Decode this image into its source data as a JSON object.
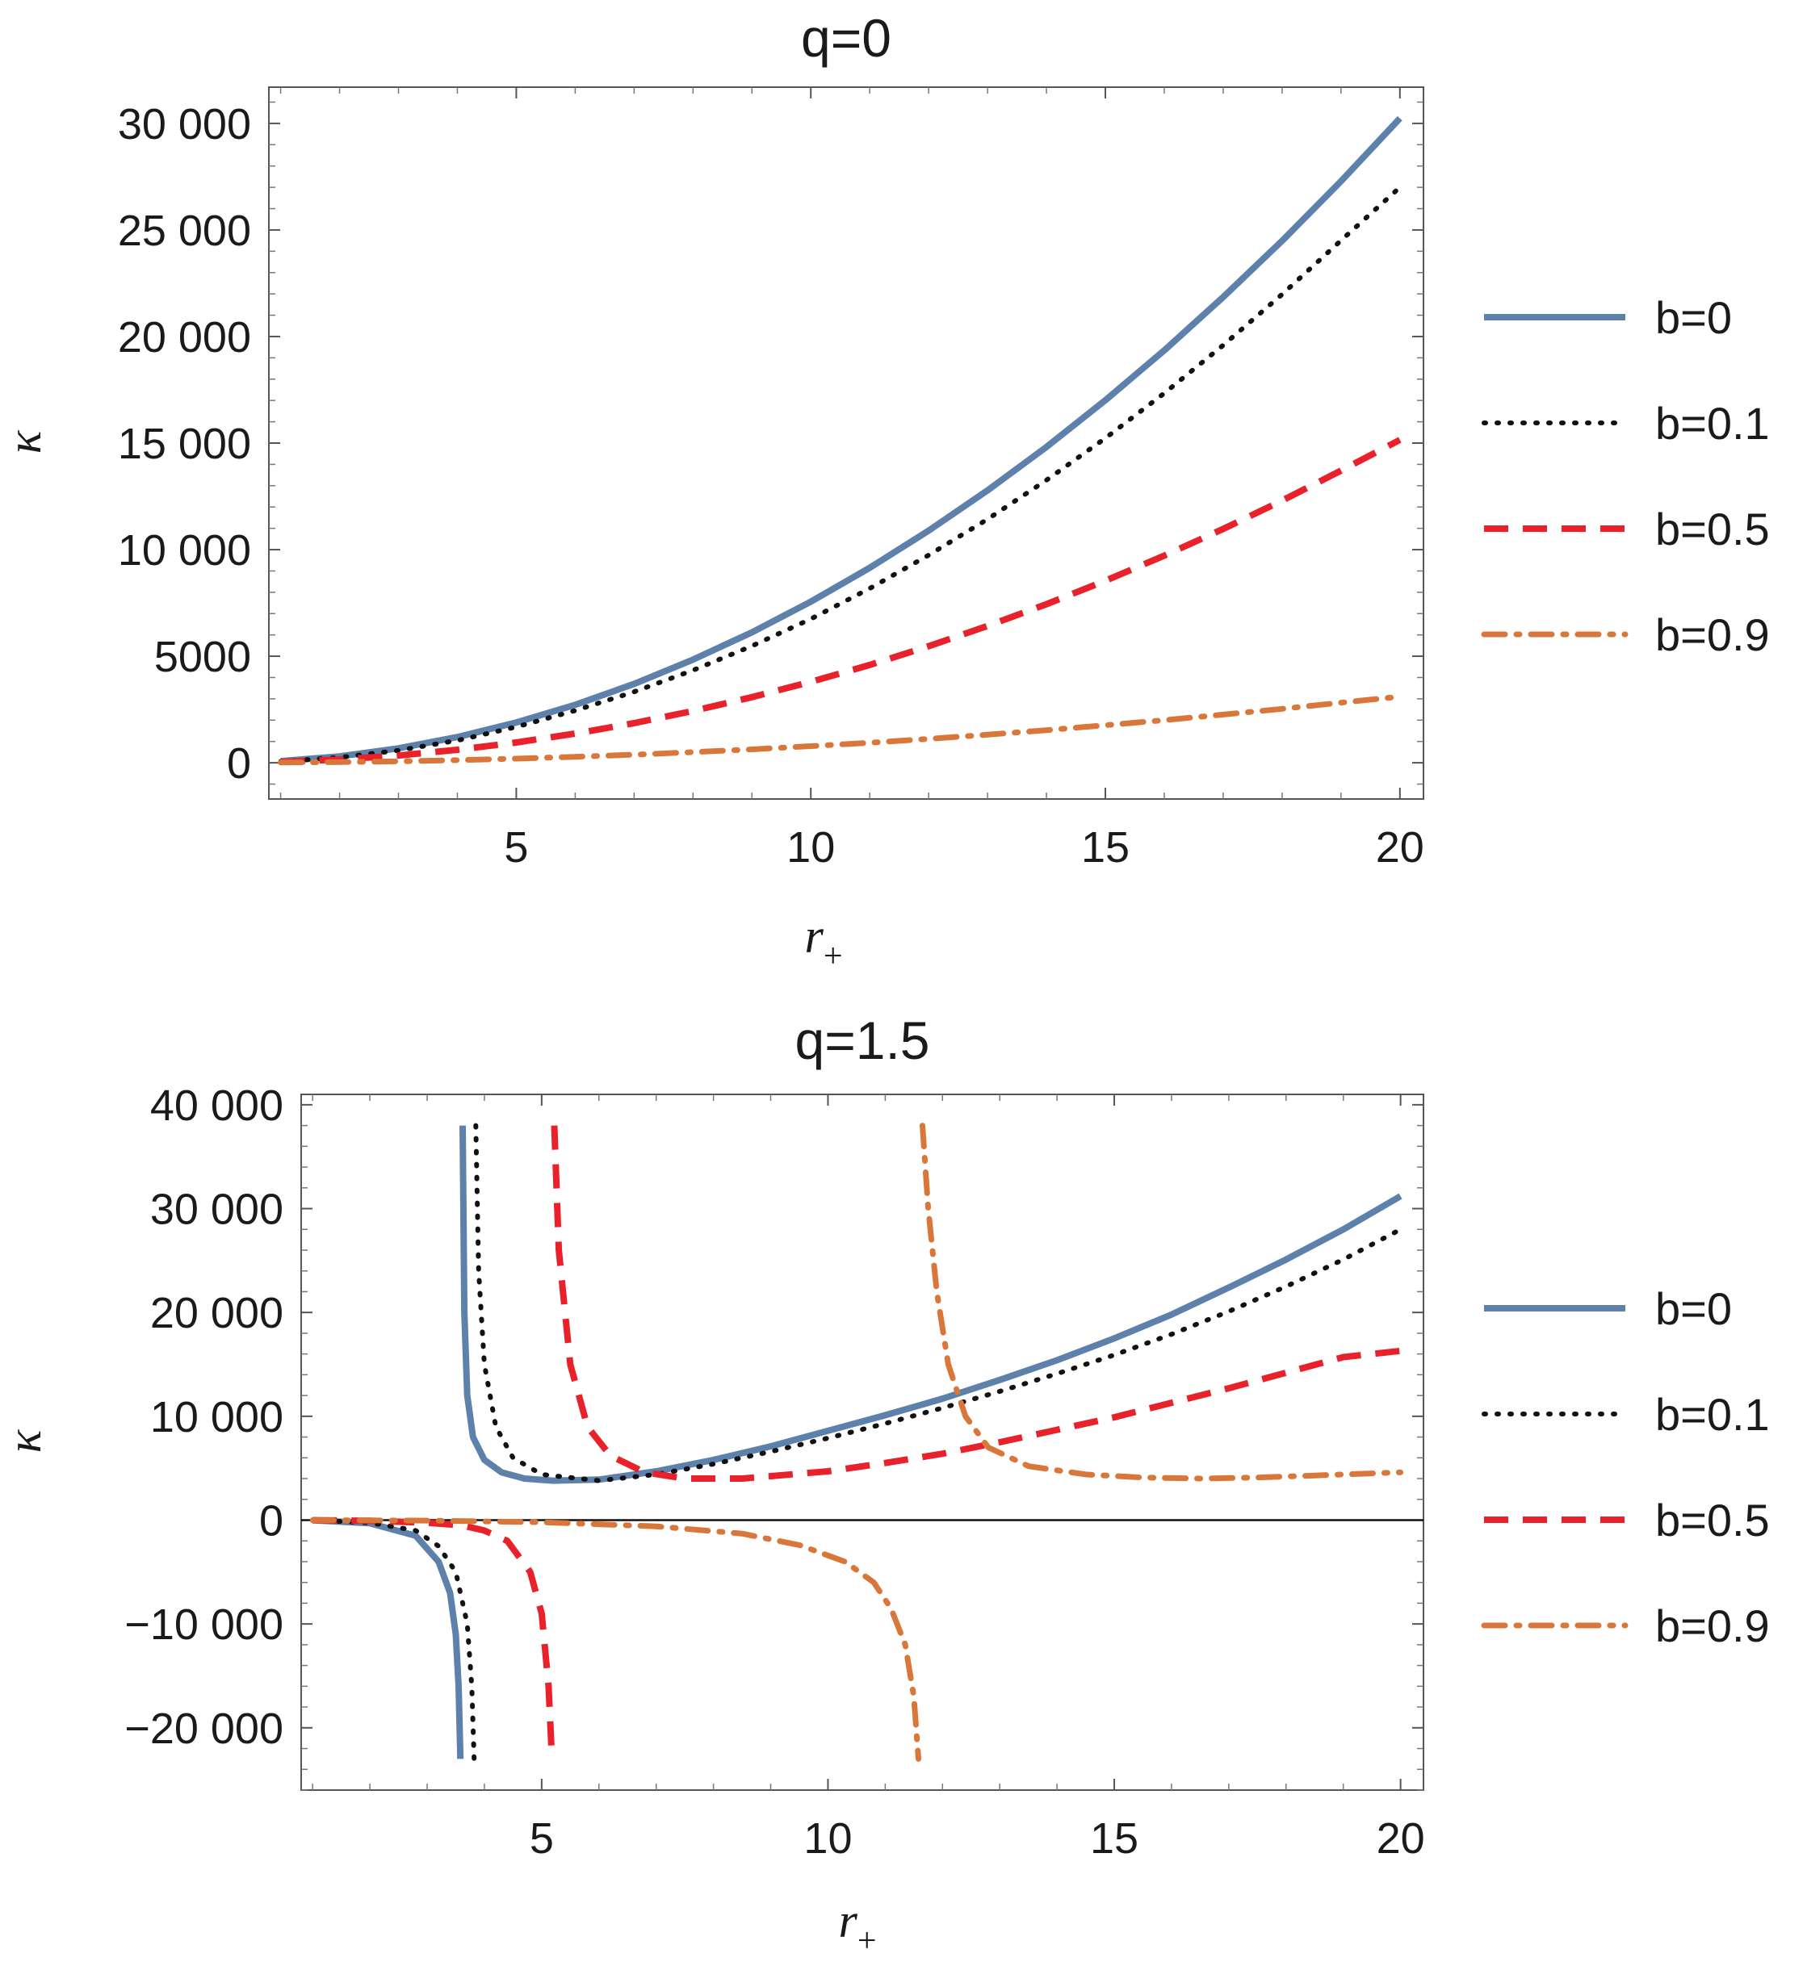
{
  "chart_data": [
    {
      "type": "line",
      "title": "q=0",
      "xlabel": "r",
      "xlabel_subscript": "+",
      "ylabel": "κ",
      "xlim": [
        0.8,
        20.4
      ],
      "ylim": [
        -1700,
        31700
      ],
      "xticks": [
        5,
        10,
        15,
        20
      ],
      "xtick_labels": [
        "5",
        "10",
        "15",
        "20"
      ],
      "yticks": [
        0,
        5000,
        10000,
        15000,
        20000,
        25000,
        30000
      ],
      "ytick_labels": [
        "0",
        "5000",
        "10 000",
        "15 000",
        "20 000",
        "25 000",
        "30 000"
      ],
      "grid": false,
      "zero_line": false,
      "legend_position": "right",
      "series": [
        {
          "name": "b=0",
          "color": "#5e81ac",
          "style": "solid",
          "x": [
            1,
            2,
            3,
            4,
            5,
            6,
            7,
            8,
            9,
            10,
            11,
            12,
            13,
            14,
            15,
            16,
            17,
            18,
            19,
            20
          ],
          "y": [
            75,
            300,
            680,
            1210,
            1890,
            2720,
            3700,
            4840,
            6120,
            7560,
            9150,
            10890,
            12780,
            14820,
            17010,
            19350,
            21850,
            24490,
            27290,
            30240
          ]
        },
        {
          "name": "b=0.1",
          "color": "#111111",
          "style": "dotted",
          "x": [
            1,
            2,
            3,
            4,
            5,
            6,
            7,
            8,
            9,
            10,
            11,
            12,
            13,
            14,
            15,
            16,
            17,
            18,
            19,
            20
          ],
          "y": [
            60,
            250,
            580,
            1050,
            1680,
            2450,
            3330,
            4340,
            5480,
            6750,
            8180,
            9740,
            11430,
            13260,
            15230,
            17340,
            19590,
            21980,
            24510,
            27000
          ]
        },
        {
          "name": "b=0.5",
          "color": "#e8212a",
          "style": "dashed",
          "x": [
            1,
            2,
            3,
            4,
            5,
            6,
            7,
            8,
            9,
            10,
            11,
            12,
            13,
            14,
            15,
            16,
            17,
            18,
            19,
            20
          ],
          "y": [
            40,
            150,
            340,
            610,
            950,
            1370,
            1860,
            2430,
            3080,
            3800,
            4590,
            5470,
            6420,
            7440,
            8540,
            9720,
            10970,
            12300,
            13710,
            15150
          ]
        },
        {
          "name": "b=0.9",
          "color": "#d9773b",
          "color2": "#e8769b",
          "style": "dashdot",
          "x": [
            1,
            2,
            3,
            4,
            5,
            6,
            7,
            8,
            9,
            10,
            11,
            12,
            13,
            14,
            15,
            16,
            17,
            18,
            19,
            20
          ],
          "y": [
            10,
            30,
            70,
            125,
            195,
            280,
            380,
            500,
            630,
            780,
            940,
            1120,
            1320,
            1530,
            1760,
            2000,
            2260,
            2530,
            2820,
            3100
          ]
        }
      ]
    },
    {
      "type": "line",
      "title": "q=1.5",
      "xlabel": "r",
      "xlabel_subscript": "+",
      "ylabel": "κ",
      "xlim": [
        0.8,
        20.4
      ],
      "ylim": [
        -26000,
        41000
      ],
      "xticks": [
        5,
        10,
        15,
        20
      ],
      "xtick_labels": [
        "5",
        "10",
        "15",
        "20"
      ],
      "yticks": [
        -20000,
        -10000,
        0,
        10000,
        20000,
        30000,
        40000
      ],
      "ytick_labels": [
        "−20 000",
        "−10 000",
        "0",
        "10 000",
        "20 000",
        "30 000",
        "40 000"
      ],
      "grid": false,
      "zero_line": true,
      "legend_position": "right",
      "series": [
        {
          "name": "b=0",
          "color": "#5e81ac",
          "style": "solid",
          "x": [
            1.0,
            2.0,
            2.8,
            3.2,
            3.4,
            3.5,
            3.55,
            3.58,
            null,
            3.62,
            3.65,
            3.7,
            3.8,
            4.0,
            4.3,
            4.7,
            5.2,
            6.0,
            7.0,
            8.0,
            9.0,
            10.0,
            11.0,
            12.0,
            13.0,
            14.0,
            15.0,
            16.0,
            17.0,
            18.0,
            19.0,
            20.0
          ],
          "y": [
            -10,
            -300,
            -1500,
            -4000,
            -7000,
            -11000,
            -16000,
            -23000,
            null,
            38000,
            20000,
            12000,
            8000,
            5800,
            4600,
            4000,
            3800,
            3900,
            4700,
            5800,
            7100,
            8600,
            10100,
            11700,
            13500,
            15400,
            17500,
            19800,
            22400,
            25100,
            28000,
            31200
          ]
        },
        {
          "name": "b=0.1",
          "color": "#111111",
          "style": "dotted",
          "x": [
            1.0,
            2.0,
            2.8,
            3.2,
            3.5,
            3.7,
            3.78,
            3.82,
            null,
            3.85,
            3.9,
            4.0,
            4.2,
            4.5,
            5.0,
            6.0,
            7.0,
            8.0,
            9.0,
            10.0,
            11.0,
            12.0,
            13.0,
            14.0,
            15.0,
            16.0,
            17.0,
            18.0,
            19.0,
            20.0
          ],
          "y": [
            -10,
            -250,
            -1000,
            -2500,
            -5000,
            -10000,
            -16000,
            -23000,
            null,
            38000,
            24000,
            15000,
            9000,
            6000,
            4400,
            3800,
            4400,
            5400,
            6600,
            7900,
            9300,
            10800,
            12400,
            14100,
            15900,
            17900,
            20100,
            22500,
            25100,
            28000
          ]
        },
        {
          "name": "b=0.5",
          "color": "#e8212a",
          "style": "dashed",
          "x": [
            1.0,
            2.0,
            3.0,
            3.6,
            4.0,
            4.4,
            4.8,
            5.0,
            5.12,
            5.18,
            null,
            5.22,
            5.3,
            5.5,
            5.8,
            6.2,
            6.8,
            7.5,
            8.5,
            10.0,
            11.0,
            12.0,
            13.0,
            14.0,
            15.0,
            16.0,
            17.0,
            18.0,
            19.0,
            20.0
          ],
          "y": [
            -5,
            -60,
            -250,
            -500,
            -1000,
            -2000,
            -5000,
            -9000,
            -16000,
            -23000,
            null,
            38000,
            26000,
            15000,
            9000,
            6200,
            4600,
            4000,
            4000,
            4700,
            5500,
            6400,
            7500,
            8700,
            9900,
            11300,
            12700,
            14200,
            15700,
            16300
          ]
        },
        {
          "name": "b=0.9",
          "color": "#d9773b",
          "color2": "#e8769b",
          "style": "dashdot",
          "x": [
            1.0,
            3.0,
            5.0,
            7.0,
            8.5,
            9.5,
            10.3,
            10.8,
            11.1,
            11.35,
            11.5,
            11.58,
            null,
            11.65,
            11.75,
            11.9,
            12.1,
            12.4,
            12.8,
            13.5,
            14.5,
            15.5,
            16.5,
            17.5,
            18.5,
            19.5,
            20.0
          ],
          "y": [
            -5,
            -50,
            -200,
            -600,
            -1300,
            -2400,
            -4000,
            -6000,
            -8500,
            -12000,
            -17000,
            -23000,
            null,
            38000,
            30000,
            22000,
            15000,
            10000,
            7000,
            5200,
            4400,
            4100,
            4000,
            4100,
            4300,
            4500,
            4600
          ]
        }
      ]
    }
  ]
}
